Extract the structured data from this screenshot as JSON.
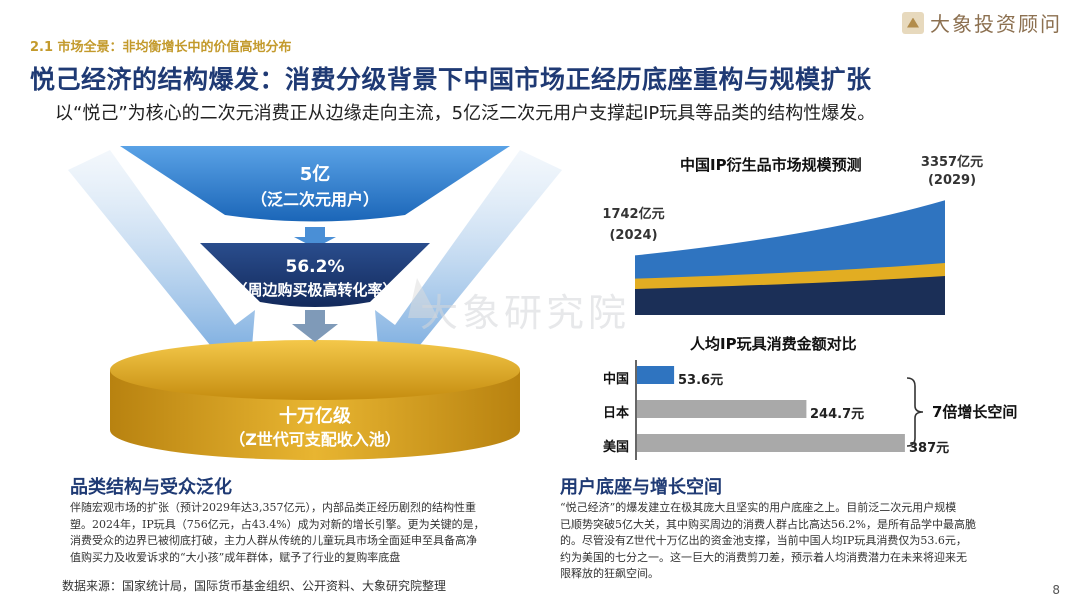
{
  "header": {
    "section_label": "2.1 市场全景：非均衡增长中的价值高地分布",
    "title": "悦己经济的结构爆发：消费分级背景下中国市场正经历底座重构与规模扩张",
    "subtitle": "以“悦己”为核心的二次元消费正从边缘走向主流，5亿泛二次元用户支撑起IP玩具等品类的结构性爆发。",
    "logo_text": "大象投资顾问",
    "watermark": "大象研究院"
  },
  "funnel": {
    "top_value": "5亿",
    "top_desc": "（泛二次元用户）",
    "mid_value": "56.2%",
    "mid_desc": "（周边购买极高转化率）",
    "bottom_value": "十万亿级",
    "bottom_desc": "（Z世代可支配收入池）"
  },
  "chart_data": [
    {
      "type": "area",
      "title": "中国IP衍生品市场规模预测",
      "x": [
        "2024",
        "2029"
      ],
      "values": [
        1742,
        3357
      ],
      "unit": "亿元",
      "labels": [
        "1742亿元",
        "(2024)",
        "3357亿元",
        "(2029)"
      ]
    },
    {
      "type": "bar",
      "title": "人均IP玩具消费金额对比",
      "categories": [
        "中国",
        "日本",
        "美国"
      ],
      "values": [
        53.6,
        244.7,
        387
      ],
      "value_labels": [
        "53.6元",
        "244.7元",
        "387元"
      ],
      "annotation": "7倍增长空间",
      "colors": [
        "#2f74c0",
        "#a9a9a9",
        "#a9a9a9"
      ]
    }
  ],
  "left_section": {
    "heading": "品类结构与受众泛化",
    "lines": [
      "伴随宏观市场的扩张（预计2029年达3,357亿元），内部品类正经历剧烈的结构性重",
      "塑。2024年，IP玩具（756亿元，占43.4%）成为对新的增长引擎。更为关键的是，",
      "消费受众的边界已被彻底打破，主力人群从传统的儿童玩具市场全面延申至具备高净",
      "值购买力及收爱诉求的“大小孩”成年群体，赋予了行业的复购率底盘"
    ]
  },
  "right_section": {
    "heading": "用户底座与增长空间",
    "lines": [
      "“悦己经济”的爆发建立在极其庞大且坚实的用户底座之上。目前泛二次元用户规模",
      "已顺势突破5亿大关，其中购买周边的消费人群占比高达56.2%，是所有品学中最高脆",
      "的。尽管没有Z世代十万亿出的资金池支撑，当前中国人均IP玩具消费仅为53.6元，",
      "约为美国的七分之一。这一巨大的消费剪刀差，预示着人均消费潜力在未来将迎来无",
      "限释放的狂飙空间。"
    ]
  },
  "footer": {
    "source": "数据来源：国家统计局，国际货币基金组织、公开资料、大象研究院整理",
    "page": "8"
  }
}
